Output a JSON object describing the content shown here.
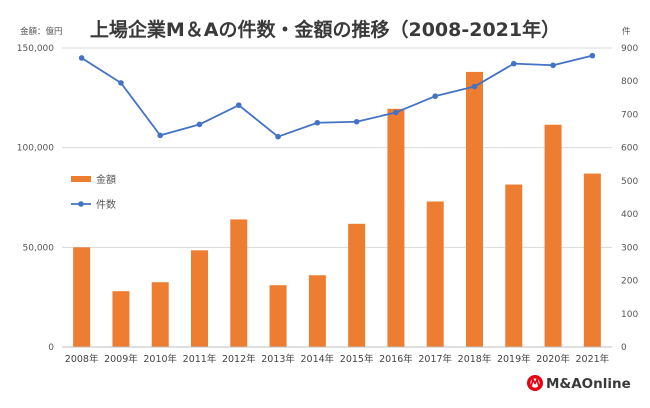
{
  "title": "上場企業M＆Aの件数・金額の推移（2008-2021年）",
  "left_axis_unit": "金額：億円",
  "right_axis_unit": "件",
  "legend": {
    "amount": "金額",
    "count": "件数"
  },
  "logo_text": "M&AOnline",
  "colors": {
    "bar": "#ED7D31",
    "line": "#4472C4",
    "grid": "#D9D9D9",
    "logo_red": "#E60012"
  },
  "chart_data": {
    "type": "bar",
    "categories": [
      "2008年",
      "2009年",
      "2010年",
      "2011年",
      "2012年",
      "2013年",
      "2014年",
      "2015年",
      "2016年",
      "2017年",
      "2018年",
      "2019年",
      "2020年",
      "2021年"
    ],
    "series": [
      {
        "name": "金額",
        "type": "bar",
        "axis": "left",
        "values": [
          50000,
          28000,
          32500,
          48500,
          64000,
          31000,
          36000,
          61800,
          119500,
          73000,
          138000,
          81500,
          111500,
          87000
        ]
      },
      {
        "name": "件数",
        "type": "line",
        "axis": "right",
        "values": [
          870,
          795,
          637,
          670,
          728,
          633,
          675,
          678,
          706,
          755,
          784,
          853,
          848,
          877
        ]
      }
    ],
    "left_axis": {
      "label": "金額：億円",
      "ylim": [
        0,
        150000
      ],
      "ticks": [
        "0",
        "50,000",
        "100,000",
        "150,000"
      ]
    },
    "right_axis": {
      "label": "件",
      "ylim": [
        0,
        900
      ],
      "ticks": [
        "0",
        "100",
        "200",
        "300",
        "400",
        "500",
        "600",
        "700",
        "800",
        "900"
      ]
    },
    "title": "上場企業M＆Aの件数・金額の推移（2008-2021年）",
    "grid": true,
    "legend_position": "left-center"
  }
}
